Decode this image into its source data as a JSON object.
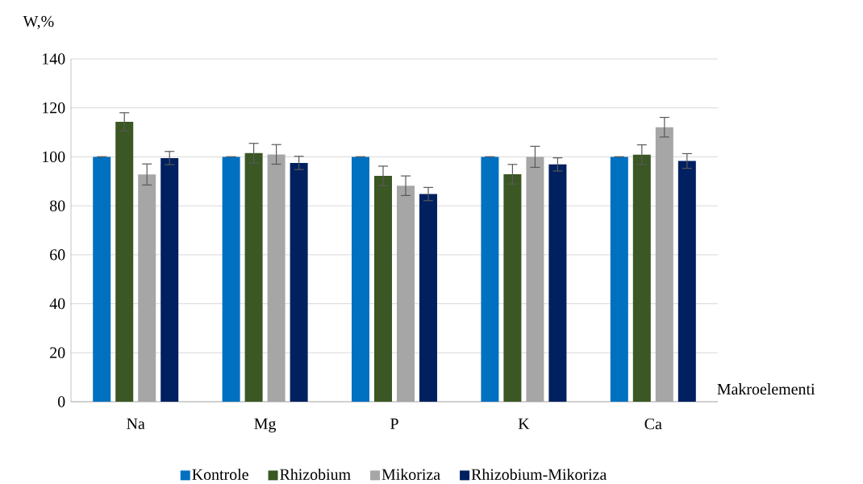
{
  "chart_data": {
    "type": "bar",
    "xlabel": "Makroelementi",
    "ylabel": "W,%",
    "categories": [
      "Na",
      "Mg",
      "P",
      "K",
      "Ca"
    ],
    "series": [
      {
        "name": "Kontrole",
        "color": "#0070c0",
        "values": [
          100,
          100,
          100,
          100,
          100
        ],
        "errors": [
          0,
          0,
          0,
          0,
          0
        ]
      },
      {
        "name": "Rhizobium",
        "color": "#3b5724",
        "values": [
          114.3,
          101.5,
          92.2,
          92.9,
          100.9
        ],
        "errors": [
          3.7,
          4,
          4,
          4,
          4
        ]
      },
      {
        "name": "Mikoriza",
        "color": "#a6a6a6",
        "values": [
          92.8,
          101,
          88.2,
          100,
          112.1
        ],
        "errors": [
          4.3,
          4,
          4,
          4.3,
          4
        ]
      },
      {
        "name": "Rhizobium-Mikoriza",
        "color": "#002060",
        "values": [
          99.5,
          97.5,
          84.8,
          96.9,
          98.3
        ],
        "errors": [
          2.7,
          2.7,
          2.7,
          2.7,
          3
        ]
      }
    ],
    "ylim": [
      0,
      140
    ],
    "yticks": [
      0,
      20,
      40,
      60,
      80,
      100,
      120,
      140
    ],
    "grid": "y",
    "legend": "bottom"
  }
}
